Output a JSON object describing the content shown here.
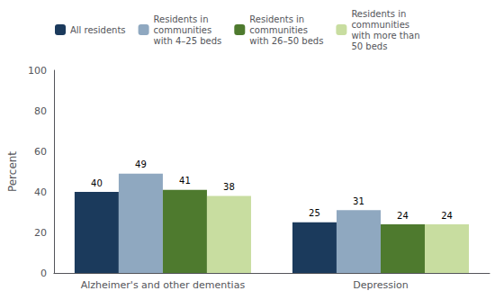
{
  "chart_data": {
    "type": "bar",
    "categories": [
      "Alzheimer's and other dementias",
      "Depression"
    ],
    "series": [
      {
        "name": "All residents",
        "color": "#1b3a5c",
        "values": [
          40,
          25
        ]
      },
      {
        "name": "Residents in\ncommunities\nwith 4–25 beds",
        "color": "#8fa8c0",
        "values": [
          49,
          31
        ]
      },
      {
        "name": "Residents in\ncommunities\nwith 26–50 beds",
        "color": "#4e7a2e",
        "values": [
          41,
          24
        ]
      },
      {
        "name": "Residents in\ncommunities\nwith more than\n50 beds",
        "color": "#c8dda0",
        "values": [
          38,
          24
        ]
      }
    ],
    "ylabel": "Percent",
    "ylim": [
      0,
      100
    ],
    "yticks": [
      0,
      20,
      40,
      60,
      80,
      100
    ],
    "grid": false,
    "data_labels": true,
    "legend": "upper left"
  }
}
